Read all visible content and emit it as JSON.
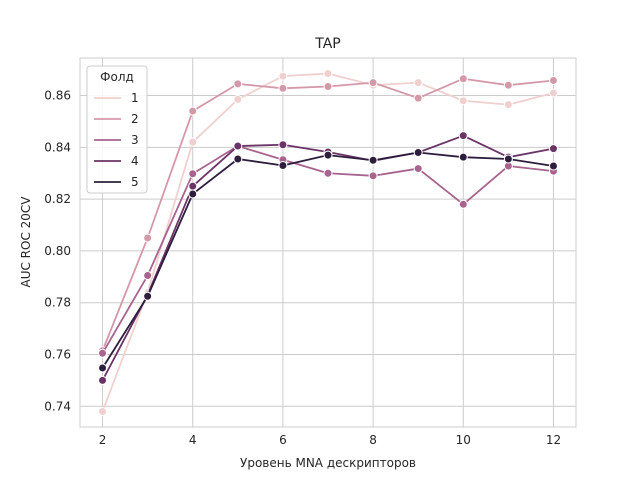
{
  "chart_data": {
    "type": "line",
    "title": "TAP",
    "xlabel": "Уровень MNA дескрипторов",
    "ylabel": "AUC ROC 20CV",
    "xlim": [
      1.5,
      12.5
    ],
    "ylim": [
      0.732,
      0.8745
    ],
    "xticks": [
      2,
      4,
      6,
      8,
      10,
      12
    ],
    "yticks": [
      0.74,
      0.76,
      0.78,
      0.8,
      0.82,
      0.84,
      0.86
    ],
    "ytick_labels": [
      "0.74",
      "0.76",
      "0.78",
      "0.80",
      "0.82",
      "0.84",
      "0.86"
    ],
    "grid": true,
    "legend": {
      "title": "Фолд",
      "position": "top-left"
    },
    "x": [
      2,
      3,
      4,
      5,
      6,
      7,
      8,
      9,
      10,
      11,
      12
    ],
    "series": [
      {
        "name": "1",
        "color": "#efd0ce",
        "values": [
          0.738,
          0.784,
          0.842,
          0.8585,
          0.8675,
          0.8685,
          0.864,
          0.865,
          0.858,
          0.8565,
          0.861
        ]
      },
      {
        "name": "2",
        "color": "#d499a8",
        "values": [
          0.7615,
          0.805,
          0.854,
          0.8645,
          0.8628,
          0.8635,
          0.865,
          0.859,
          0.8665,
          0.864,
          0.8658
        ]
      },
      {
        "name": "3",
        "color": "#a8638e",
        "values": [
          0.7605,
          0.7905,
          0.8298,
          0.8405,
          0.8352,
          0.83,
          0.829,
          0.8318,
          0.818,
          0.8328,
          0.8308
        ]
      },
      {
        "name": "4",
        "color": "#6a3466",
        "values": [
          0.75,
          0.783,
          0.825,
          0.8405,
          0.841,
          0.8382,
          0.8348,
          0.838,
          0.8445,
          0.8362,
          0.8395
        ]
      },
      {
        "name": "5",
        "color": "#2d1e3e",
        "values": [
          0.7548,
          0.7825,
          0.822,
          0.8355,
          0.833,
          0.837,
          0.835,
          0.838,
          0.8362,
          0.8355,
          0.8328
        ]
      }
    ]
  }
}
